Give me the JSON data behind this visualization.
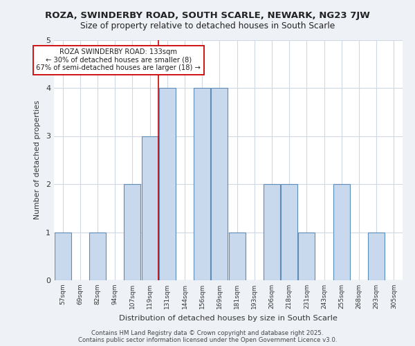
{
  "title1": "ROZA, SWINDERBY ROAD, SOUTH SCARLE, NEWARK, NG23 7JW",
  "title2": "Size of property relative to detached houses in South Scarle",
  "xlabel": "Distribution of detached houses by size in South Scarle",
  "ylabel": "Number of detached properties",
  "categories": [
    "57sqm",
    "69sqm",
    "82sqm",
    "94sqm",
    "107sqm",
    "119sqm",
    "131sqm",
    "144sqm",
    "156sqm",
    "169sqm",
    "181sqm",
    "193sqm",
    "206sqm",
    "218sqm",
    "231sqm",
    "243sqm",
    "255sqm",
    "268sqm",
    "293sqm",
    "305sqm"
  ],
  "bar_values": [
    1,
    0,
    1,
    0,
    2,
    3,
    4,
    0,
    4,
    4,
    1,
    0,
    2,
    2,
    1,
    0,
    2,
    0,
    1,
    0
  ],
  "bar_color": "#c9d9ed",
  "bar_edge_color": "#5b8db8",
  "vline_color": "#cc0000",
  "vline_pos": 6.0,
  "annotation_title": "ROZA SWINDERBY ROAD: 133sqm",
  "annotation_line1": "← 30% of detached houses are smaller (8)",
  "annotation_line2": "67% of semi-detached houses are larger (18) →",
  "annotation_box_color": "#ffffff",
  "annotation_box_edge": "#cc0000",
  "grid_color": "#d0d8e4",
  "background_color": "#eef2f7",
  "plot_bg_color": "#ffffff",
  "footer": "Contains HM Land Registry data © Crown copyright and database right 2025.\nContains public sector information licensed under the Open Government Licence v3.0.",
  "ylim": [
    0,
    5
  ],
  "yticks": [
    0,
    1,
    2,
    3,
    4,
    5
  ]
}
